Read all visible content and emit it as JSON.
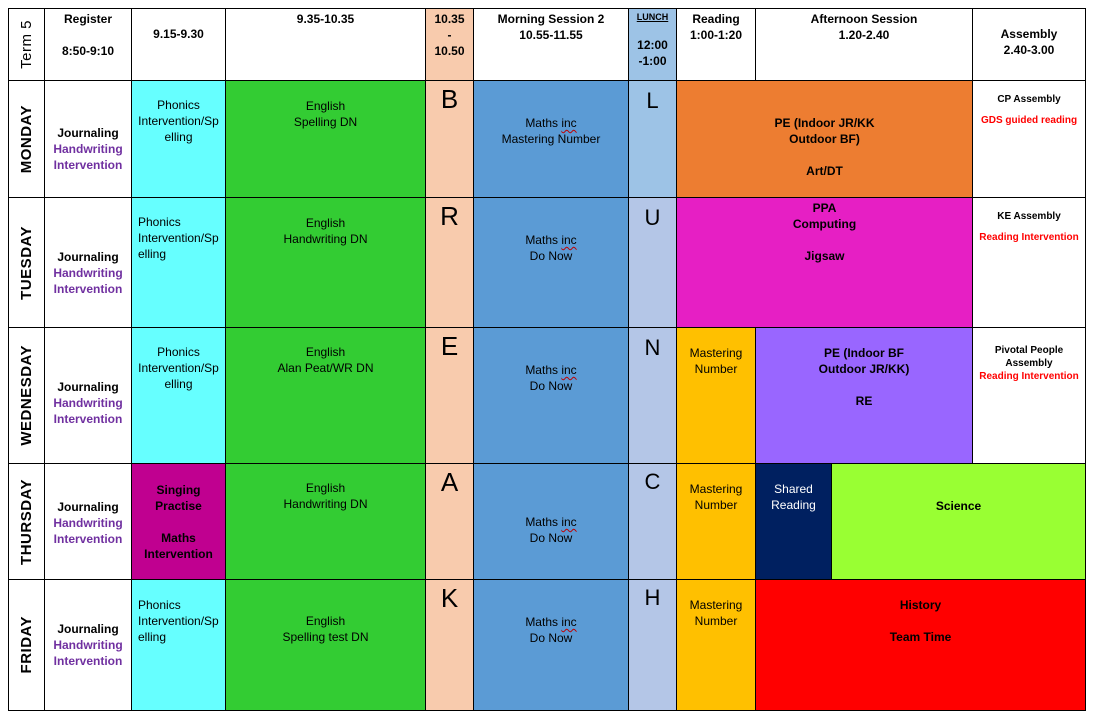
{
  "header": {
    "term": "Term 5",
    "register": "Register",
    "register_time": "8:50-9:10",
    "slot1": "9.15-9.30",
    "slot2": "9.35-10.35",
    "break_line1": "10.35",
    "break_line2": "-",
    "break_line3": "10.50",
    "morning2": "Morning Session 2",
    "morning2_time": "10.55-11.55",
    "lunch": "LUNCH",
    "lunch_line1": "12:00",
    "lunch_line2": "-1:00",
    "reading": "Reading",
    "reading_time": "1:00-1:20",
    "afternoon": "Afternoon Session",
    "afternoon_time": "1.20-2.40",
    "assembly": "Assembly",
    "assembly_time": "2.40-3.00"
  },
  "register_cell": {
    "line1": "Journaling",
    "line2": "Handwriting",
    "line3": "Intervention"
  },
  "break_letters": [
    "B",
    "R",
    "E",
    "A",
    "K"
  ],
  "lunch_letters": [
    "L",
    "U",
    "N",
    "C",
    "H"
  ],
  "monday": {
    "day": "MONDAY",
    "slot1": [
      "Phonics",
      "Intervention/Sp",
      "elling"
    ],
    "english": [
      "English",
      "Spelling DN"
    ],
    "maths_a": "Maths ",
    "maths_b": "inc",
    "maths_2": "Mastering Number",
    "afternoon": [
      "PE (Indoor JR/KK",
      "Outdoor BF)",
      "Art/DT"
    ],
    "assembly": "CP Assembly",
    "assembly_note": "GDS guided reading"
  },
  "tuesday": {
    "day": "TUESDAY",
    "slot1": [
      "Phonics",
      "Intervention/Sp",
      "elling"
    ],
    "english": [
      "English",
      "Handwriting DN"
    ],
    "maths_a": "Maths ",
    "maths_b": "inc",
    "maths_2": "Do Now",
    "afternoon": [
      "PPA",
      "Computing",
      "Jigsaw"
    ],
    "assembly": "KE Assembly",
    "assembly_note": "Reading Intervention"
  },
  "wednesday": {
    "day": "WEDNESDAY",
    "slot1": [
      "Phonics",
      "Intervention/Sp",
      "elling"
    ],
    "english": [
      "English",
      "Alan Peat/WR DN"
    ],
    "maths_a": "Maths ",
    "maths_b": "inc",
    "maths_2": "Do Now",
    "reading": [
      "Mastering",
      "Number"
    ],
    "afternoon": [
      "PE (Indoor BF",
      "Outdoor JR/KK)",
      "RE"
    ],
    "assembly_1": "Pivotal People",
    "assembly_2": "Assembly",
    "assembly_note": "Reading Intervention"
  },
  "thursday": {
    "day": "THURSDAY",
    "slot1": [
      "Singing",
      "Practise",
      "Maths",
      "Intervention"
    ],
    "english": [
      "English",
      "Handwriting DN"
    ],
    "maths_a": "Maths ",
    "maths_b": "inc",
    "maths_2": "Do Now",
    "reading": [
      "Mastering",
      "Number"
    ],
    "shared": [
      "Shared",
      "Reading"
    ],
    "science": "Science"
  },
  "friday": {
    "day": "FRIDAY",
    "slot1": [
      "Phonics",
      "Intervention/Sp",
      "elling"
    ],
    "english": [
      "English",
      "Spelling test DN"
    ],
    "maths_a": "Maths ",
    "maths_b": "inc",
    "maths_2": "Do Now",
    "reading": [
      "Mastering",
      "Number"
    ],
    "afternoon": [
      "History",
      "Team Time"
    ]
  },
  "colors": {
    "phonics": "#66ffff",
    "english": "#33cc33",
    "break": "#f8cbad",
    "maths": "#5b9bd5",
    "lunch": "#b4c6e7",
    "lunch_header": "#9dc3e6",
    "pe_monday": "#ed7d31",
    "ppa_tuesday": "#e61fc4",
    "mastering": "#ffc000",
    "pe_wednesday": "#9966ff",
    "singing": "#c00090",
    "shared_reading": "#002060",
    "science": "#99ff33",
    "history": "#ff0000",
    "handwriting_text": "#7030a0",
    "note_text": "#ff0000"
  }
}
